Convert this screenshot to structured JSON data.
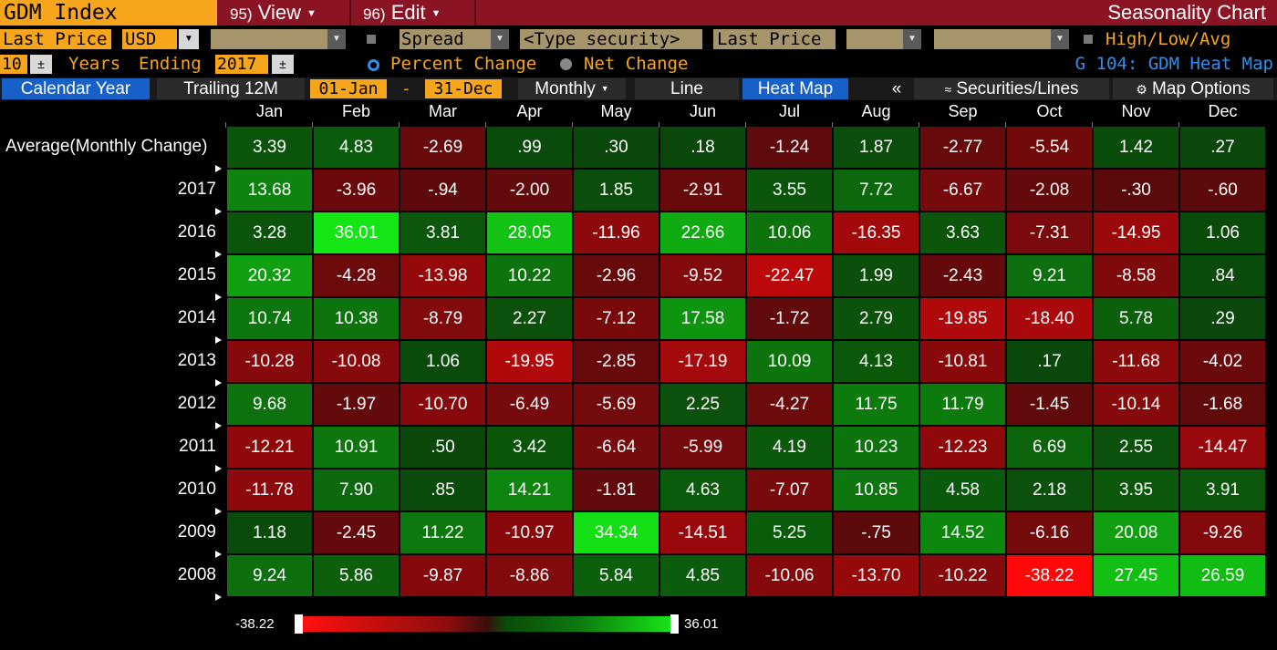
{
  "header": {
    "ticker": "GDM Index",
    "menus": [
      {
        "num": "95)",
        "label": "View"
      },
      {
        "num": "96)",
        "label": "Edit"
      }
    ],
    "title": "Seasonality Chart"
  },
  "controls": {
    "field": "Last Price",
    "currency": "USD",
    "spread_label": "Spread",
    "security_placeholder": "<Type security>",
    "price2": "Last Price",
    "hla_label": "High/Low/Avg",
    "years": "10",
    "years_label": "Years",
    "ending_label": "Ending",
    "ending_year": "2017",
    "pct_change": "Percent Change",
    "net_change": "Net Change",
    "g_label": "G 104: GDM Heat Map"
  },
  "toolbar": {
    "calendar_year": "Calendar Year",
    "trailing": "Trailing 12M",
    "start_date": "01-Jan",
    "dash": "-",
    "end_date": "31-Dec",
    "periodicity": "Monthly",
    "line": "Line",
    "heat_map": "Heat Map",
    "collapse": "«",
    "securities": "Securities/Lines",
    "map_options": "Map Options"
  },
  "grid": {
    "months": [
      "Jan",
      "Feb",
      "Mar",
      "Apr",
      "May",
      "Jun",
      "Jul",
      "Aug",
      "Sep",
      "Oct",
      "Nov",
      "Dec"
    ],
    "rows": [
      {
        "label": "Average(Monthly Change)",
        "values": [
          "3.39",
          "4.83",
          "-2.69",
          ".99",
          ".30",
          ".18",
          "-1.24",
          "1.87",
          "-2.77",
          "-5.54",
          "1.42",
          ".27"
        ]
      },
      {
        "label": "2017",
        "values": [
          "13.68",
          "-3.96",
          "-.94",
          "-2.00",
          "1.85",
          "-2.91",
          "3.55",
          "7.72",
          "-6.67",
          "-2.08",
          "-.30",
          "-.60"
        ]
      },
      {
        "label": "2016",
        "values": [
          "3.28",
          "36.01",
          "3.81",
          "28.05",
          "-11.96",
          "22.66",
          "10.06",
          "-16.35",
          "3.63",
          "-7.31",
          "-14.95",
          "1.06"
        ]
      },
      {
        "label": "2015",
        "values": [
          "20.32",
          "-4.28",
          "-13.98",
          "10.22",
          "-2.96",
          "-9.52",
          "-22.47",
          "1.99",
          "-2.43",
          "9.21",
          "-8.58",
          ".84"
        ]
      },
      {
        "label": "2014",
        "values": [
          "10.74",
          "10.38",
          "-8.79",
          "2.27",
          "-7.12",
          "17.58",
          "-1.72",
          "2.79",
          "-19.85",
          "-18.40",
          "5.78",
          ".29"
        ]
      },
      {
        "label": "2013",
        "values": [
          "-10.28",
          "-10.08",
          "1.06",
          "-19.95",
          "-2.85",
          "-17.19",
          "10.09",
          "4.13",
          "-10.81",
          ".17",
          "-11.68",
          "-4.02"
        ]
      },
      {
        "label": "2012",
        "values": [
          "9.68",
          "-1.97",
          "-10.70",
          "-6.49",
          "-5.69",
          "2.25",
          "-4.27",
          "11.75",
          "11.79",
          "-1.45",
          "-10.14",
          "-1.68"
        ]
      },
      {
        "label": "2011",
        "values": [
          "-12.21",
          "10.91",
          ".50",
          "3.42",
          "-6.64",
          "-5.99",
          "4.19",
          "10.23",
          "-12.23",
          "6.69",
          "2.55",
          "-14.47"
        ]
      },
      {
        "label": "2010",
        "values": [
          "-11.78",
          "7.90",
          ".85",
          "14.21",
          "-1.81",
          "4.63",
          "-7.07",
          "10.85",
          "4.58",
          "2.18",
          "3.95",
          "3.91"
        ]
      },
      {
        "label": "2009",
        "values": [
          "1.18",
          "-2.45",
          "11.22",
          "-10.97",
          "34.34",
          "-14.51",
          "5.25",
          "-.75",
          "14.52",
          "-6.16",
          "20.08",
          "-9.26"
        ]
      },
      {
        "label": "2008",
        "values": [
          "9.24",
          "5.86",
          "-9.87",
          "-8.86",
          "5.84",
          "4.85",
          "-10.06",
          "-13.70",
          "-10.22",
          "-38.22",
          "27.45",
          "26.59"
        ]
      }
    ]
  },
  "legend": {
    "min": "-38.22",
    "max": "36.01"
  },
  "colors": {
    "accent": "#f7a51b",
    "title_bar": "#8a1423",
    "active_tab": "#1660c8",
    "link_blue": "#2f8ff0"
  }
}
